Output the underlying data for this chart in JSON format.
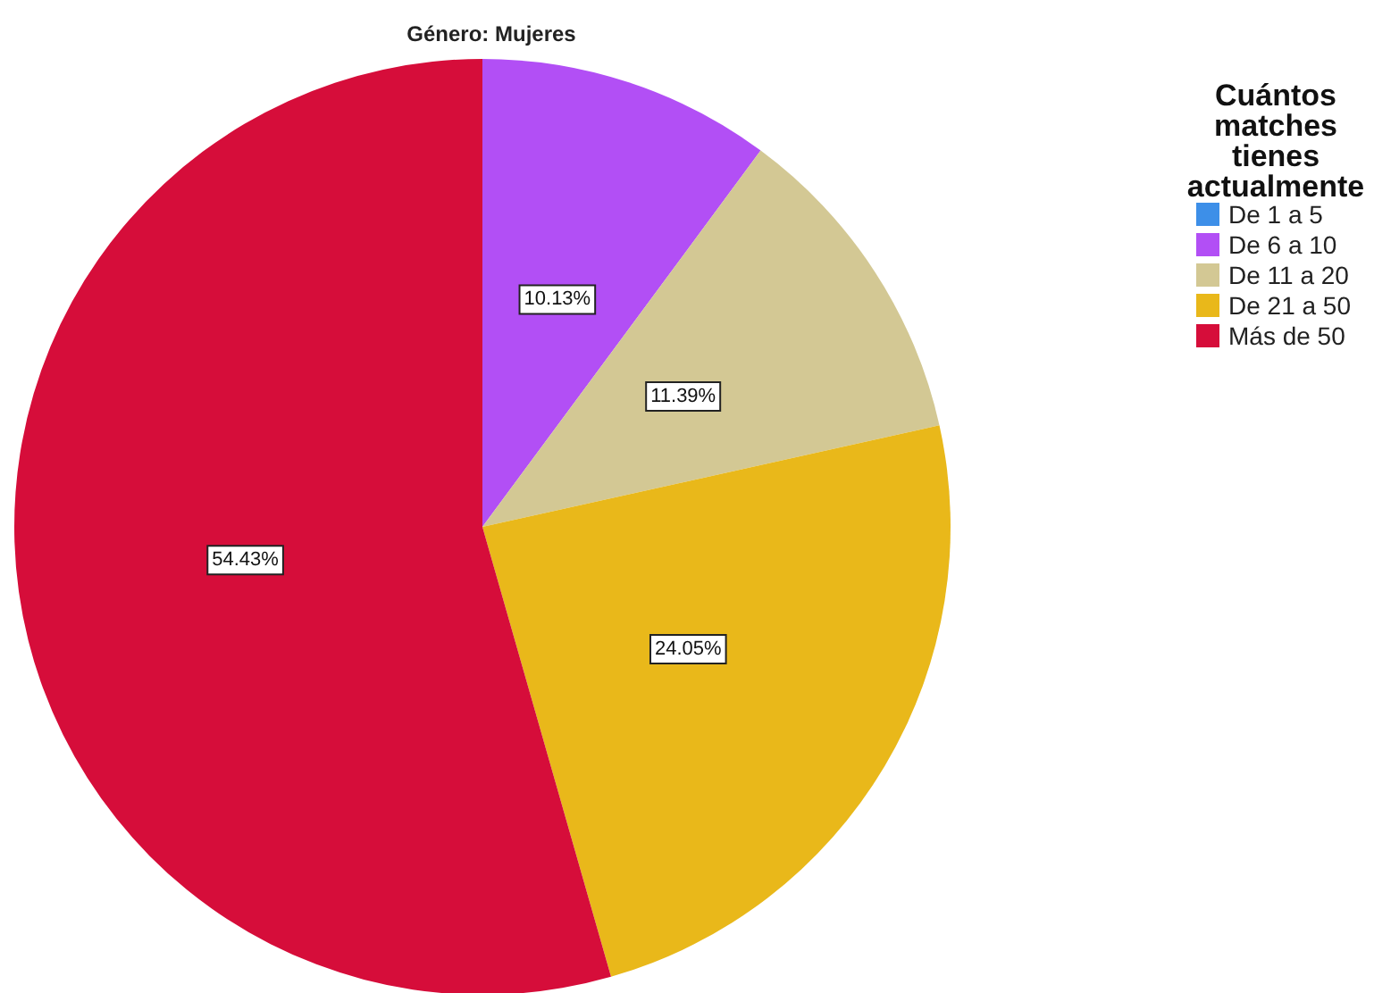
{
  "chart_data": {
    "type": "pie",
    "title": "Género: Mujeres",
    "legend_title": "Cuántos\nmatches\ntienes\nactualmente",
    "categories": [
      "De 1 a 5",
      "De 6 a 10",
      "De 11 a 20",
      "De 21 a 50",
      "Más de 50"
    ],
    "values": [
      0,
      10.13,
      11.39,
      24.05,
      54.43
    ],
    "value_labels": [
      null,
      "10.13%",
      "11.39%",
      "24.05%",
      "54.43%"
    ],
    "colors": [
      "#3d8fe8",
      "#b24ff5",
      "#d3c894",
      "#e9b81a",
      "#d60d3a"
    ],
    "legend": "right"
  }
}
